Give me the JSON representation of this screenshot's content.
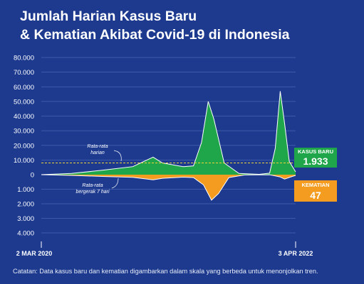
{
  "title_line1": "Jumlah Harian Kasus Baru",
  "title_line2": "& Kematian Akibat Covid-19 di Indonesia",
  "note": "Catatan: Data kasus baru dan kematian digambarkan dalam skala yang berbeda untuk menonjolkan tren.",
  "colors": {
    "background": "#1d3a8f",
    "cases": "#1fa64a",
    "deaths": "#f39c1f",
    "average_line": "#ffffff",
    "dashed_line": "#f2d13a",
    "grid": "#4a64b0"
  },
  "chart_data": {
    "type": "area",
    "x_labels": {
      "start": "2 MAR 2020",
      "end": "3 APR 2022"
    },
    "x_range": [
      "2020-03-02",
      "2022-04-03"
    ],
    "upper_axis": {
      "ticks": [
        "80.000",
        "70.000",
        "60.000",
        "50.000",
        "40.000",
        "30.000",
        "20.000",
        "10.000",
        "0"
      ],
      "ylim": [
        0,
        80000
      ]
    },
    "lower_axis": {
      "ticks": [
        "1.000",
        "2.000",
        "3.000",
        "4.000"
      ],
      "ylim": [
        0,
        4000
      ]
    },
    "reference_line": {
      "value": 8000,
      "style": "dashed"
    },
    "series": [
      {
        "name": "Kasus Baru",
        "axis": "upper",
        "x": [
          "2020-03-02",
          "2020-06-01",
          "2020-09-01",
          "2020-12-01",
          "2021-01-31",
          "2021-02-28",
          "2021-05-01",
          "2021-06-01",
          "2021-06-25",
          "2021-07-15",
          "2021-08-01",
          "2021-09-01",
          "2021-10-15",
          "2021-12-15",
          "2022-01-15",
          "2022-02-01",
          "2022-02-16",
          "2022-03-01",
          "2022-03-15",
          "2022-04-03"
        ],
        "values": [
          0,
          800,
          3000,
          5500,
          12000,
          8000,
          5500,
          6000,
          22000,
          50000,
          38000,
          8000,
          800,
          250,
          1000,
          18000,
          57000,
          35000,
          9000,
          1933
        ]
      },
      {
        "name": "Kematian",
        "axis": "lower",
        "x": [
          "2020-03-02",
          "2020-06-01",
          "2020-09-01",
          "2020-12-01",
          "2021-01-31",
          "2021-02-28",
          "2021-05-01",
          "2021-06-01",
          "2021-07-01",
          "2021-07-25",
          "2021-08-15",
          "2021-09-15",
          "2021-11-01",
          "2022-01-15",
          "2022-02-15",
          "2022-03-01",
          "2022-03-20",
          "2022-04-03"
        ],
        "values": [
          0,
          50,
          120,
          180,
          350,
          250,
          170,
          200,
          700,
          1750,
          1300,
          200,
          20,
          5,
          150,
          300,
          150,
          47
        ]
      }
    ],
    "annotations": {
      "daily": "Rata-rata\nharian",
      "moving_avg": "Rata-rata\nbergerak 7 hari"
    },
    "badges": {
      "cases_label": "KASUS BARU",
      "cases_value": "1.933",
      "deaths_label": "KEMATIAN",
      "deaths_value": "47"
    }
  }
}
